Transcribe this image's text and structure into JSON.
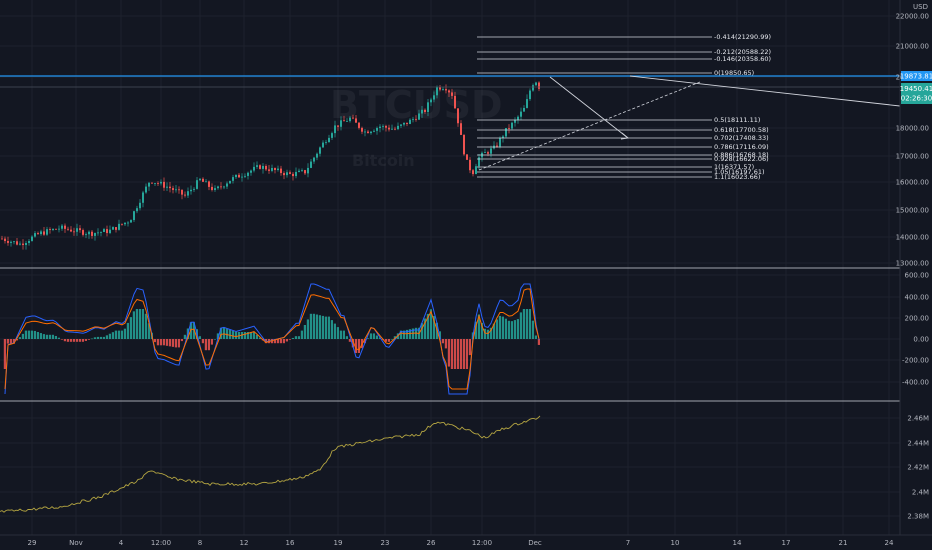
{
  "colors": {
    "background": "#131722",
    "grid": "#1e222d",
    "up": "#26a69a",
    "down": "#ef5350",
    "hline": "#2196f3",
    "macd": "#2962ff",
    "signal": "#ff6d00",
    "obv": "#b5a642",
    "separator": "#d1d4dc",
    "price_badge": "#26a69a",
    "level_badge": "#2196f3"
  },
  "price_axis": {
    "currency": "USD",
    "ticks": [
      "22000.00",
      "21000.00",
      "20000.00",
      "18000.00",
      "17000.00",
      "16000.00",
      "15000.00",
      "14000.00",
      "13000.00"
    ],
    "level_badge": "19873.81",
    "price_badge": "19450.41",
    "countdown": "02:26:30"
  },
  "macd_axis": {
    "ticks": [
      "600.00",
      "400.00",
      "200.00",
      "0.00",
      "-200.00",
      "-400.00"
    ]
  },
  "obv_axis": {
    "ticks": [
      "2.46M",
      "2.44M",
      "2.42M",
      "2.4M",
      "2.38M"
    ]
  },
  "time_axis": {
    "labels": [
      "29",
      "Nov",
      "4",
      "12:00",
      "8",
      "12",
      "16",
      "19",
      "23",
      "26",
      "12:00",
      "Dec",
      "7",
      "10",
      "14",
      "17",
      "21",
      "24"
    ]
  },
  "fib_levels": [
    "-0.414(21290.99)",
    "-0.212(20588.22)",
    "-0.146(20358.60)",
    "0(19850.65)",
    "0.5(18111.11)",
    "0.618(17700.58)",
    "0.702(17408.33)",
    "0.786(17116.09)",
    "0.886(16768.18)",
    "0.928(16622.06)",
    "1(16371.57)",
    "1.05(16197.61)",
    "1.1(16023.66)"
  ],
  "watermark": {
    "symbol": "BTCUSD",
    "name": "Bitcoin"
  }
}
